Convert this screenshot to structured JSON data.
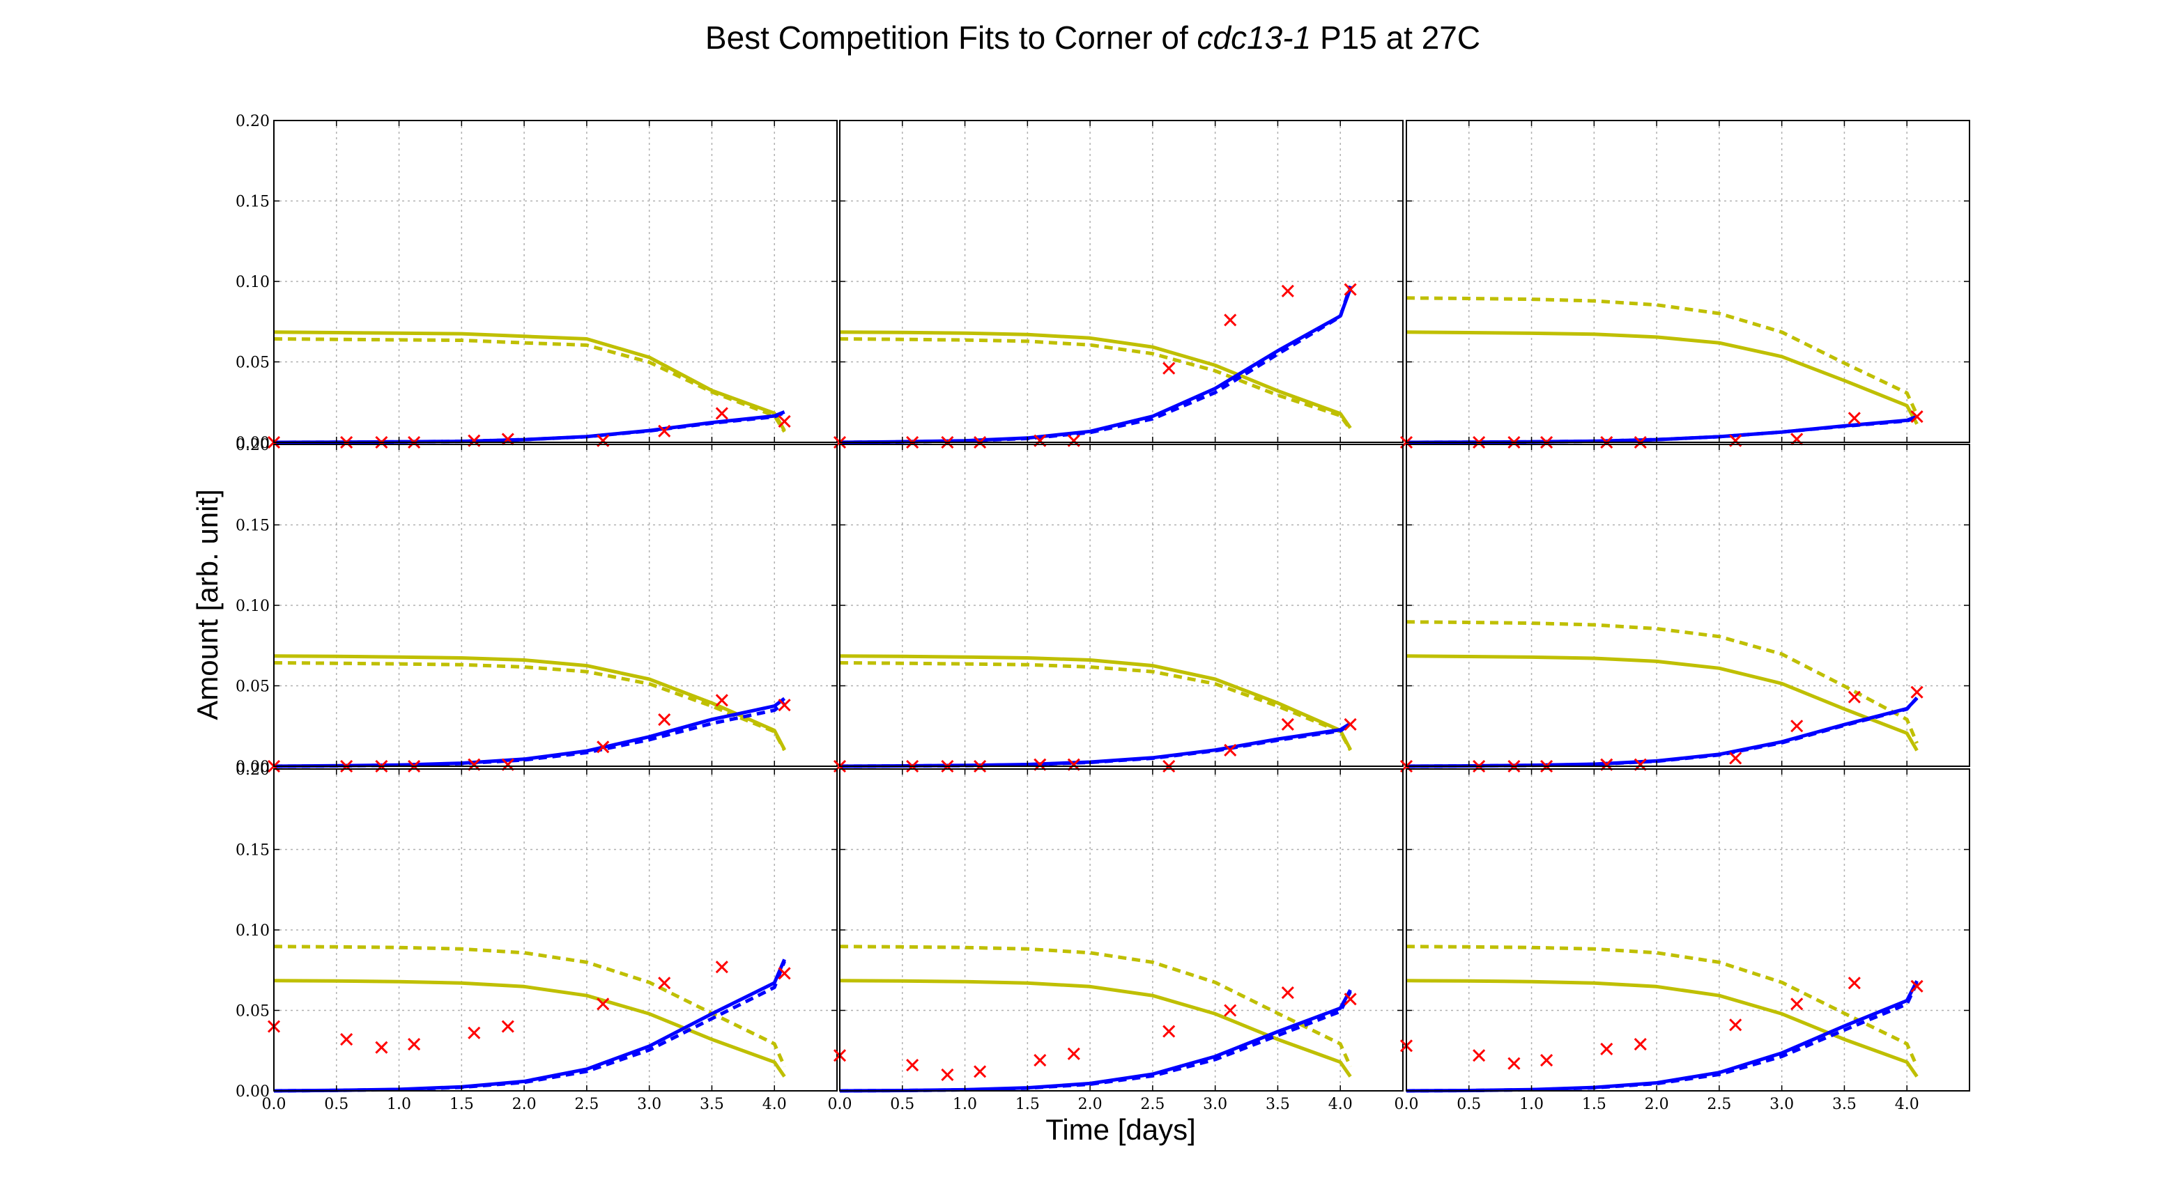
{
  "title_parts": [
    "Best Competition Fits to Corner of ",
    "cdc13-1",
    " P15 at 27C"
  ],
  "colors": {
    "competitor": "#bfbf00",
    "target": "#0000ff",
    "observed": "#ff0000",
    "grid": "#b0b0b0"
  },
  "chart_data": {
    "type": "line",
    "layout": "3x3 grid of panels sharing axes",
    "xlabel": "Time [days]",
    "ylabel": "Amount [arb. unit]",
    "xlim": [
      0.0,
      4.5
    ],
    "ylim": [
      0.0,
      0.2
    ],
    "xticks": [
      "0.0",
      "0.5",
      "1.0",
      "1.5",
      "2.0",
      "2.5",
      "3.0",
      "3.5",
      "4.0"
    ],
    "xtick_values": [
      0.0,
      0.5,
      1.0,
      1.5,
      2.0,
      2.5,
      3.0,
      3.5,
      4.0
    ],
    "yticks": [
      "0.00",
      "0.05",
      "0.10",
      "0.15",
      "0.20"
    ],
    "ytick_values": [
      0.0,
      0.05,
      0.1,
      0.15,
      0.2
    ],
    "grid": true,
    "observation_times": [
      0.0,
      0.58,
      0.86,
      1.12,
      1.6,
      1.87,
      2.63,
      3.12,
      3.58,
      4.08
    ],
    "panels": [
      {
        "competitor_solid": [
          0.0685,
          0.0682,
          0.0679,
          0.0675,
          0.0659,
          0.0643,
          0.0528,
          0.0322,
          0.0181,
          0.0073,
          0.0032
        ],
        "competitor_dashed": [
          0.0643,
          0.064,
          0.0637,
          0.0634,
          0.0618,
          0.0604,
          0.0498,
          0.0313,
          0.0165,
          0.0066,
          0.0028
        ],
        "target_solid": [
          0.0,
          0.0001,
          0.0003,
          0.0006,
          0.0017,
          0.0036,
          0.0073,
          0.0123,
          0.0164,
          0.0189,
          0.0201
        ],
        "target_dashed": [
          0.0,
          0.0001,
          0.0003,
          0.0006,
          0.0017,
          0.0035,
          0.0071,
          0.0119,
          0.0159,
          0.0185,
          0.0198
        ],
        "observed": [
          0.0,
          0.0,
          0.0,
          0.0,
          0.001,
          0.002,
          0.001,
          0.007,
          0.018,
          0.013
        ]
      },
      {
        "competitor_solid": [
          0.0685,
          0.0683,
          0.0679,
          0.067,
          0.0648,
          0.0592,
          0.0479,
          0.032,
          0.0179,
          0.0089,
          0.0041
        ],
        "competitor_dashed": [
          0.0643,
          0.064,
          0.0636,
          0.0628,
          0.0605,
          0.0551,
          0.0444,
          0.0293,
          0.0166,
          0.0082,
          0.0037
        ],
        "target_solid": [
          0.0,
          0.0004,
          0.001,
          0.0027,
          0.0068,
          0.0162,
          0.0335,
          0.0569,
          0.0785,
          0.0955,
          0.1055
        ],
        "target_dashed": [
          0.0,
          0.0003,
          0.0009,
          0.0024,
          0.0061,
          0.0146,
          0.031,
          0.0548,
          0.0781,
          0.0972,
          0.1083
        ],
        "observed": [
          0.0,
          0.0,
          0.0,
          0.0,
          0.001,
          0.001,
          0.046,
          0.076,
          0.094,
          0.095
        ]
      },
      {
        "competitor_solid": [
          0.0685,
          0.0682,
          0.0678,
          0.0672,
          0.0654,
          0.0618,
          0.0533,
          0.0384,
          0.0228,
          0.0114,
          0.0044
        ],
        "competitor_dashed": [
          0.0897,
          0.0894,
          0.0889,
          0.0879,
          0.0854,
          0.0801,
          0.0685,
          0.0492,
          0.0307,
          0.0171,
          0.0086
        ],
        "target_solid": [
          0.0,
          0.0001,
          0.0003,
          0.0007,
          0.0017,
          0.0035,
          0.0064,
          0.0102,
          0.0137,
          0.0161,
          0.0173
        ],
        "target_dashed": [
          0.0,
          0.0001,
          0.0003,
          0.0007,
          0.0017,
          0.0035,
          0.0064,
          0.01,
          0.0133,
          0.0156,
          0.0167
        ],
        "observed": [
          0.0,
          0.0,
          0.0,
          0.0,
          0.0,
          0.0,
          0.001,
          0.002,
          0.015,
          0.016
        ]
      },
      {
        "competitor_solid": [
          0.0685,
          0.0683,
          0.0679,
          0.0673,
          0.066,
          0.0625,
          0.0541,
          0.0393,
          0.0223,
          0.0104,
          0.0044
        ],
        "competitor_dashed": [
          0.0643,
          0.064,
          0.0636,
          0.0631,
          0.0617,
          0.0588,
          0.0512,
          0.0373,
          0.0215,
          0.0099,
          0.0042
        ],
        "target_solid": [
          0.0,
          0.0003,
          0.0008,
          0.0019,
          0.0044,
          0.0095,
          0.0183,
          0.0291,
          0.0374,
          0.0421,
          0.0442
        ],
        "target_dashed": [
          0.0,
          0.0002,
          0.0007,
          0.0017,
          0.0039,
          0.0085,
          0.0165,
          0.0266,
          0.0348,
          0.0396,
          0.0421
        ],
        "observed": [
          0.0,
          0.0,
          0.0,
          0.0,
          0.001,
          0.001,
          0.012,
          0.029,
          0.041,
          0.038
        ]
      },
      {
        "competitor_solid": [
          0.0685,
          0.0683,
          0.0679,
          0.0673,
          0.066,
          0.0625,
          0.0541,
          0.0393,
          0.0223,
          0.0104,
          0.0044
        ],
        "competitor_dashed": [
          0.0643,
          0.064,
          0.0636,
          0.0631,
          0.0617,
          0.0588,
          0.0512,
          0.0373,
          0.0215,
          0.0099,
          0.0042
        ],
        "target_solid": [
          0.0,
          0.0002,
          0.0005,
          0.0011,
          0.0026,
          0.0053,
          0.0101,
          0.0169,
          0.0227,
          0.0266,
          0.0285
        ],
        "target_dashed": [
          0.0,
          0.0002,
          0.0004,
          0.001,
          0.0024,
          0.005,
          0.0096,
          0.0162,
          0.022,
          0.026,
          0.0281
        ],
        "observed": [
          0.0,
          0.0,
          0.0,
          0.0,
          0.001,
          0.001,
          0.0,
          0.01,
          0.026,
          0.026
        ]
      },
      {
        "competitor_solid": [
          0.0685,
          0.0682,
          0.0678,
          0.0671,
          0.0652,
          0.0609,
          0.0514,
          0.0356,
          0.0205,
          0.0098,
          0.0042
        ],
        "competitor_dashed": [
          0.0897,
          0.0894,
          0.0889,
          0.0879,
          0.0855,
          0.0806,
          0.0697,
          0.0498,
          0.0291,
          0.0143,
          0.0062
        ],
        "target_solid": [
          0.0,
          0.0002,
          0.0006,
          0.0013,
          0.0033,
          0.0074,
          0.0152,
          0.0259,
          0.0358,
          0.0423,
          0.0454
        ],
        "target_dashed": [
          0.0,
          0.0002,
          0.0005,
          0.0012,
          0.0031,
          0.007,
          0.0146,
          0.0254,
          0.0355,
          0.0426,
          0.0461
        ],
        "observed": [
          0.0,
          0.0,
          0.0,
          0.0,
          0.001,
          0.001,
          0.005,
          0.025,
          0.043,
          0.046
        ]
      },
      {
        "competitor_solid": [
          0.0685,
          0.0683,
          0.0679,
          0.067,
          0.0648,
          0.0592,
          0.0479,
          0.032,
          0.0179,
          0.0089,
          0.0041
        ],
        "competitor_dashed": [
          0.0897,
          0.0895,
          0.0891,
          0.0882,
          0.0858,
          0.0799,
          0.0674,
          0.0482,
          0.0292,
          0.0151,
          0.007
        ],
        "target_solid": [
          0.0,
          0.0003,
          0.0009,
          0.0025,
          0.0059,
          0.0135,
          0.0278,
          0.0479,
          0.0671,
          0.0817,
          0.0915
        ],
        "target_dashed": [
          0.0,
          0.0003,
          0.0008,
          0.0022,
          0.0053,
          0.0121,
          0.0254,
          0.0449,
          0.0643,
          0.0806,
          0.0912
        ],
        "observed": [
          0.04,
          0.032,
          0.027,
          0.029,
          0.036,
          0.04,
          0.054,
          0.067,
          0.077,
          0.073
        ]
      },
      {
        "competitor_solid": [
          0.0685,
          0.0683,
          0.0679,
          0.067,
          0.0648,
          0.0592,
          0.0479,
          0.032,
          0.0179,
          0.0089,
          0.0041
        ],
        "competitor_dashed": [
          0.0897,
          0.0895,
          0.0891,
          0.0882,
          0.0858,
          0.0799,
          0.0674,
          0.0482,
          0.0292,
          0.0151,
          0.007
        ],
        "target_solid": [
          0.0,
          0.0002,
          0.0007,
          0.0019,
          0.0046,
          0.0104,
          0.0214,
          0.0368,
          0.0514,
          0.0627,
          0.0702
        ],
        "target_dashed": [
          0.0,
          0.0002,
          0.0006,
          0.0017,
          0.0041,
          0.0093,
          0.0195,
          0.0344,
          0.0493,
          0.0617,
          0.0703
        ],
        "observed": [
          0.022,
          0.016,
          0.01,
          0.012,
          0.019,
          0.023,
          0.037,
          0.05,
          0.061,
          0.057
        ]
      },
      {
        "competitor_solid": [
          0.0685,
          0.0683,
          0.0679,
          0.067,
          0.0648,
          0.0592,
          0.0479,
          0.032,
          0.0179,
          0.0089,
          0.0041
        ],
        "competitor_dashed": [
          0.0897,
          0.0895,
          0.0891,
          0.0882,
          0.0858,
          0.0799,
          0.0674,
          0.0482,
          0.0292,
          0.0151,
          0.007
        ],
        "target_solid": [
          0.0,
          0.0002,
          0.0008,
          0.0021,
          0.005,
          0.0114,
          0.0235,
          0.0403,
          0.0561,
          0.0683,
          0.0762
        ],
        "target_dashed": [
          0.0,
          0.0002,
          0.0007,
          0.0019,
          0.0045,
          0.0102,
          0.0214,
          0.0378,
          0.0539,
          0.0672,
          0.0765
        ],
        "observed": [
          0.028,
          0.022,
          0.017,
          0.019,
          0.026,
          0.029,
          0.041,
          0.054,
          0.067,
          0.065
        ]
      }
    ],
    "curve_times": [
      0.0,
      0.5,
      1.0,
      1.5,
      2.0,
      2.5,
      3.0,
      3.5,
      4.0,
      4.08,
      4.08
    ]
  }
}
